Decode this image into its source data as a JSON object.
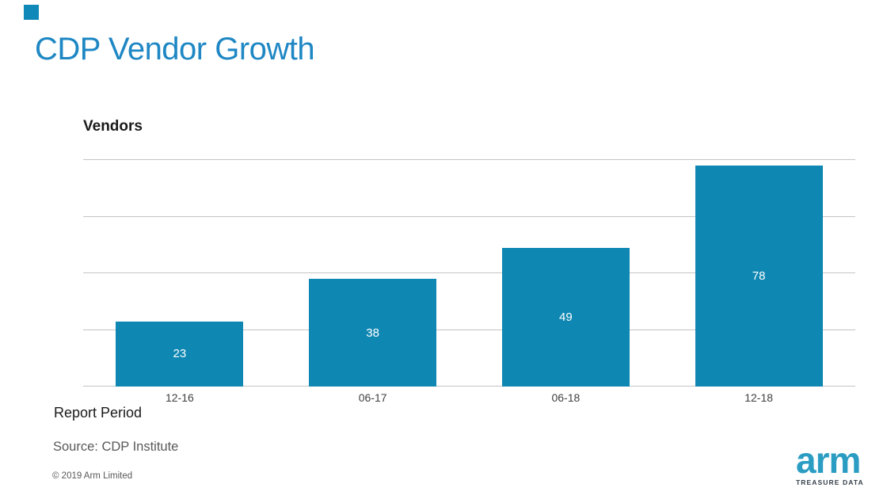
{
  "slide": {
    "title": "CDP Vendor Growth",
    "title_color": "#1E87C4",
    "accent_color": "#1088B8",
    "background_color": "#FFFFFF"
  },
  "chart_data": {
    "type": "bar",
    "title": "CDP Vendor Growth",
    "ylabel": "Vendors",
    "xlabel": "Report Period",
    "categories": [
      "12-16",
      "06-17",
      "06-18",
      "12-18"
    ],
    "values": [
      23,
      38,
      49,
      78
    ],
    "ylim": [
      0,
      80
    ],
    "grid_step": 20,
    "grid": true,
    "legend": "none",
    "bar_color": "#0E87B2",
    "value_label_color": "#FFFFFF",
    "gridline_color": "#C4C4C4",
    "tick_label_color": "#404040"
  },
  "footer": {
    "source": "Source: CDP Institute",
    "copyright": "© 2019 Arm Limited"
  },
  "logo": {
    "brand": "arm",
    "sub": "TREASURE DATA",
    "brand_color": "#2B9DC3",
    "sub_color": "#333E48"
  }
}
